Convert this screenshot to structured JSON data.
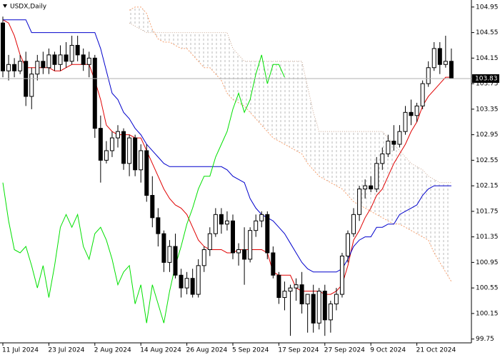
{
  "chart_data": {
    "type": "candlestick",
    "title": "USDX,Daily",
    "categories": [
      "11 Jul 2024",
      null,
      null,
      null,
      null,
      null,
      null,
      null,
      "23 Jul 2024",
      null,
      null,
      null,
      null,
      null,
      null,
      null,
      "2 Aug 2024",
      null,
      null,
      null,
      null,
      null,
      null,
      null,
      "14 Aug 2024",
      null,
      null,
      null,
      null,
      null,
      null,
      null,
      "26 Aug 2024",
      null,
      null,
      null,
      null,
      null,
      null,
      null,
      "5 Sep 2024",
      null,
      null,
      null,
      null,
      null,
      null,
      null,
      "17 Sep 2024",
      null,
      null,
      null,
      null,
      null,
      null,
      null,
      "27 Sep 2024",
      null,
      null,
      null,
      null,
      null,
      null,
      null,
      "9 Oct 2024",
      null,
      null,
      null,
      null,
      null,
      null,
      null,
      "21 Oct 2024",
      null,
      null,
      null,
      null,
      null,
      null
    ],
    "open": [
      104.7,
      103.95,
      104.05,
      103.95,
      104.1,
      103.55,
      103.9,
      104.1,
      104.0,
      104.2,
      104.05,
      104.2,
      104.1,
      104.35,
      104.2,
      104.05,
      104.15,
      103.05,
      102.55,
      102.7,
      102.9,
      103.0,
      102.5,
      102.9,
      102.4,
      102.7,
      102.0,
      101.65,
      101.4,
      100.95,
      101.2,
      100.75,
      100.55,
      100.7,
      100.45,
      100.9,
      101.15,
      101.4,
      101.7,
      101.55,
      101.6,
      101.1,
      101.15,
      101.0,
      101.45,
      101.6,
      101.7,
      101.1,
      100.75,
      100.4,
      100.5,
      100.55,
      100.6,
      100.3,
      100.45,
      100.0,
      100.5,
      100.05,
      100.3,
      100.45,
      101.05,
      101.4,
      101.7,
      102.1,
      102.15,
      102.1,
      102.5,
      102.65,
      102.85,
      102.8,
      103.0,
      103.3,
      103.25,
      103.4,
      103.75,
      104.0,
      104.3,
      104.05,
      104.1
    ],
    "high": [
      104.8,
      104.2,
      104.15,
      104.2,
      104.25,
      104.0,
      104.2,
      104.25,
      104.3,
      104.25,
      104.35,
      104.4,
      104.5,
      104.5,
      104.3,
      104.25,
      104.2,
      103.25,
      102.85,
      103.0,
      103.1,
      103.05,
      102.95,
      102.95,
      102.8,
      102.8,
      102.3,
      101.8,
      101.45,
      101.3,
      101.4,
      100.85,
      100.8,
      100.85,
      101.0,
      101.2,
      101.5,
      101.8,
      101.8,
      101.75,
      101.7,
      101.25,
      101.5,
      101.5,
      101.7,
      101.75,
      101.75,
      101.2,
      100.8,
      100.65,
      100.6,
      100.7,
      100.8,
      100.45,
      100.6,
      100.55,
      100.6,
      100.35,
      100.55,
      101.1,
      101.45,
      101.8,
      102.15,
      102.25,
      102.3,
      102.6,
      102.75,
      102.95,
      103.1,
      103.1,
      103.4,
      103.5,
      103.45,
      103.8,
      104.1,
      104.4,
      104.4,
      104.5,
      104.3
    ],
    "low": [
      103.85,
      103.8,
      103.85,
      103.9,
      103.4,
      103.35,
      103.8,
      103.9,
      103.9,
      103.95,
      103.95,
      104.0,
      104.05,
      104.1,
      103.95,
      103.85,
      102.9,
      102.2,
      102.5,
      102.6,
      102.75,
      102.4,
      102.3,
      102.3,
      102.2,
      101.9,
      101.5,
      101.2,
      100.8,
      100.8,
      100.7,
      100.4,
      100.45,
      100.4,
      100.4,
      100.8,
      101.05,
      101.35,
      101.4,
      101.45,
      101.0,
      100.9,
      100.6,
      100.95,
      101.35,
      101.5,
      101.0,
      100.7,
      100.3,
      100.2,
      99.8,
      100.35,
      100.15,
      99.85,
      99.85,
      99.9,
      99.8,
      99.85,
      100.2,
      100.4,
      100.95,
      101.35,
      101.6,
      101.95,
      102.05,
      102.05,
      102.4,
      102.6,
      102.7,
      102.75,
      102.95,
      103.1,
      103.15,
      103.35,
      103.7,
      103.95,
      103.9,
      104.0,
      103.85
    ],
    "close": [
      103.95,
      104.05,
      103.95,
      104.1,
      103.55,
      103.9,
      104.1,
      104.0,
      104.2,
      104.05,
      104.2,
      104.1,
      104.35,
      104.2,
      104.05,
      104.15,
      103.05,
      102.55,
      102.7,
      102.9,
      103.0,
      102.5,
      102.9,
      102.4,
      102.7,
      102.0,
      101.65,
      101.4,
      100.95,
      101.2,
      100.75,
      100.55,
      100.7,
      100.45,
      100.9,
      101.15,
      101.4,
      101.7,
      101.55,
      101.6,
      101.1,
      101.15,
      101.0,
      101.45,
      101.6,
      101.7,
      101.1,
      100.75,
      100.4,
      100.5,
      100.55,
      100.6,
      100.3,
      100.45,
      100.0,
      100.5,
      100.05,
      100.3,
      100.45,
      101.05,
      101.4,
      101.7,
      102.1,
      102.15,
      102.1,
      102.5,
      102.65,
      102.85,
      102.8,
      103.0,
      103.3,
      103.25,
      103.4,
      103.75,
      104.0,
      104.3,
      104.05,
      104.1,
      103.83
    ],
    "lines": [
      {
        "color": "#e00000",
        "values": [
          104.75,
          104.7,
          104.5,
          104.2,
          104.0,
          104.0,
          104.0,
          104.0,
          104.0,
          103.95,
          103.95,
          104.0,
          104.05,
          104.05,
          104.05,
          104.05,
          103.8,
          103.5,
          103.1,
          103.0,
          102.95,
          102.95,
          102.95,
          102.9,
          102.9,
          102.7,
          102.5,
          102.3,
          102.1,
          101.95,
          101.85,
          101.8,
          101.7,
          101.5,
          101.3,
          101.2,
          101.15,
          101.15,
          101.15,
          101.1,
          101.1,
          101.15,
          101.15,
          101.15,
          101.15,
          101.15,
          101.1,
          100.8,
          100.75,
          100.75,
          100.75,
          100.55,
          100.5,
          100.5,
          100.5,
          100.5,
          100.45,
          100.45,
          100.5,
          100.6,
          100.9,
          101.3,
          101.45,
          101.65,
          101.8,
          102.0,
          102.1,
          102.3,
          102.5,
          102.65,
          102.8,
          103.0,
          103.15,
          103.4,
          103.55,
          103.65,
          103.75,
          103.85,
          103.85
        ]
      },
      {
        "color": "#0000cc",
        "values": [
          104.75,
          104.75,
          104.75,
          104.75,
          104.75,
          104.55,
          104.55,
          104.55,
          104.55,
          104.55,
          104.55,
          104.55,
          104.55,
          104.55,
          104.55,
          104.55,
          104.55,
          104.3,
          103.95,
          103.6,
          103.5,
          103.3,
          103.2,
          103.05,
          102.95,
          102.8,
          102.7,
          102.6,
          102.5,
          102.45,
          102.45,
          102.45,
          102.45,
          102.45,
          102.45,
          102.45,
          102.45,
          102.45,
          102.45,
          102.4,
          102.3,
          102.25,
          102.2,
          101.95,
          101.8,
          101.7,
          101.65,
          101.6,
          101.5,
          101.4,
          101.25,
          101.1,
          100.95,
          100.85,
          100.8,
          100.8,
          100.8,
          100.8,
          100.8,
          100.85,
          101.0,
          101.2,
          101.3,
          101.35,
          101.35,
          101.5,
          101.5,
          101.55,
          101.55,
          101.7,
          101.75,
          101.8,
          101.85,
          102.0,
          102.1,
          102.15,
          102.15,
          102.15,
          102.15
        ]
      },
      {
        "color": "#00e000",
        "values": [
          102.2,
          101.6,
          101.15,
          101.1,
          101.2,
          100.9,
          100.55,
          100.9,
          100.4,
          100.9,
          101.5,
          101.7,
          101.5,
          101.7,
          101.2,
          101.0,
          101.4,
          101.5,
          101.3,
          101.0,
          100.6,
          100.8,
          100.9,
          100.3,
          100.6,
          100.0,
          100.6,
          100.3,
          100.0,
          100.5,
          100.9,
          101.2,
          101.55,
          101.8,
          102.1,
          102.3,
          102.3,
          102.6,
          102.8,
          103.0,
          103.35,
          103.6,
          103.3,
          103.5,
          103.9,
          104.2,
          103.75,
          104.05,
          104.05,
          103.85,
          null,
          null,
          null,
          null,
          null,
          null,
          null,
          null,
          null,
          null,
          null,
          null,
          null,
          null,
          null,
          null,
          null,
          null,
          null,
          null,
          null,
          null,
          null,
          null,
          null,
          null,
          null,
          null,
          null
        ]
      }
    ],
    "cloud": {
      "span_a_color": "#f4a070",
      "span_b_color": "#c9a58f",
      "span_a": [
        null,
        null,
        null,
        null,
        null,
        null,
        null,
        null,
        null,
        null,
        null,
        null,
        null,
        null,
        null,
        null,
        null,
        null,
        null,
        null,
        null,
        null,
        104.9,
        104.95,
        104.95,
        104.85,
        104.6,
        104.45,
        104.4,
        104.4,
        104.35,
        104.3,
        104.3,
        104.2,
        104.1,
        104.0,
        104.0,
        103.9,
        103.8,
        103.6,
        103.5,
        103.45,
        103.4,
        103.3,
        103.2,
        103.1,
        103.0,
        102.9,
        102.85,
        102.8,
        102.75,
        102.7,
        102.65,
        102.5,
        102.4,
        102.3,
        102.25,
        102.2,
        102.15,
        102.1,
        102.0,
        101.9,
        101.85,
        101.8,
        101.75,
        101.7,
        101.65,
        101.6,
        101.55,
        101.55,
        101.5,
        101.45,
        101.4,
        101.35,
        101.3,
        101.1,
        100.95,
        100.8,
        100.65
      ],
      "span_b": [
        null,
        null,
        null,
        null,
        null,
        null,
        null,
        null,
        null,
        null,
        null,
        null,
        null,
        null,
        null,
        null,
        null,
        null,
        null,
        null,
        null,
        null,
        104.7,
        104.65,
        104.6,
        104.55,
        104.55,
        104.55,
        104.55,
        104.55,
        104.55,
        104.55,
        104.55,
        104.55,
        104.55,
        104.55,
        104.55,
        104.55,
        104.55,
        104.55,
        104.3,
        104.2,
        104.1,
        104.1,
        104.1,
        104.1,
        104.1,
        104.1,
        104.1,
        104.1,
        104.1,
        104.1,
        104.1,
        103.7,
        103.3,
        103.0,
        103.0,
        103.0,
        103.0,
        103.0,
        103.0,
        103.0,
        103.0,
        103.0,
        103.0,
        103.0,
        103.0,
        102.9,
        102.8,
        102.7,
        102.6,
        102.5,
        102.45,
        102.4,
        102.3,
        102.25,
        102.2,
        102.2,
        102.2
      ]
    },
    "last_price": 103.83,
    "ylim": [
      99.69,
      105.06
    ],
    "yticks": [
      104.95,
      104.55,
      104.15,
      103.75,
      103.35,
      102.95,
      102.55,
      102.15,
      101.75,
      101.35,
      100.95,
      100.55,
      100.15,
      99.75
    ]
  }
}
